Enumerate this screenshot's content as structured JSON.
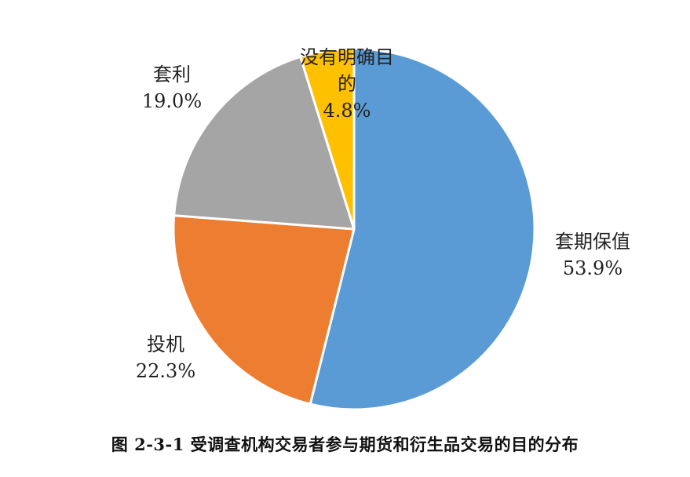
{
  "chart_data": {
    "type": "pie",
    "title": "图 2-3-1  受调查机构交易者参与期货和衍生品交易的目的分布",
    "slices": [
      {
        "label": "套期保值",
        "value": 53.9,
        "value_label": "53.9%",
        "color": "#5B9BD5"
      },
      {
        "label": "投机",
        "value": 22.3,
        "value_label": "22.3%",
        "color": "#ED7D31"
      },
      {
        "label": "套利",
        "value": 19.0,
        "value_label": "19.0%",
        "color": "#A5A5A5"
      },
      {
        "label": "没有明确目的",
        "label_lines": [
          "没有明确目",
          "的"
        ],
        "value": 4.8,
        "value_label": "4.8%",
        "color": "#FFC000"
      }
    ],
    "legend": "none",
    "start": "12 o'clock",
    "direction": "clockwise"
  }
}
